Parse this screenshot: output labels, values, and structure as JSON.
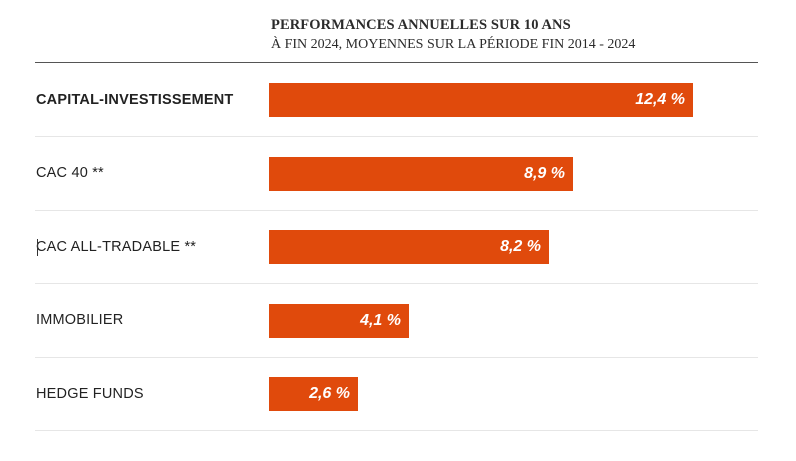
{
  "chart_data": {
    "type": "bar",
    "orientation": "horizontal",
    "title": "PERFORMANCES ANNUELLES SUR 10 ANS",
    "subtitle": "À FIN 2024, MOYENNES SUR LA PÉRIODE FIN 2014 - 2024",
    "categories": [
      "CAPITAL-INVESTISSEMENT",
      "CAC 40 **",
      "CAC ALL-TRADABLE **",
      "IMMOBILIER",
      "HEDGE FUNDS"
    ],
    "values": [
      12.4,
      8.9,
      8.2,
      4.1,
      2.6
    ],
    "value_labels": [
      "12,4 %",
      "8,9 %",
      "8,2 %",
      "4,1 %",
      "2,6 %"
    ],
    "highlighted_category": "CAPITAL-INVESTISSEMENT",
    "unit": "%",
    "xlim": [
      0,
      12.4
    ],
    "bar_color": "#e04a0c",
    "label_color": "#ffffff"
  }
}
